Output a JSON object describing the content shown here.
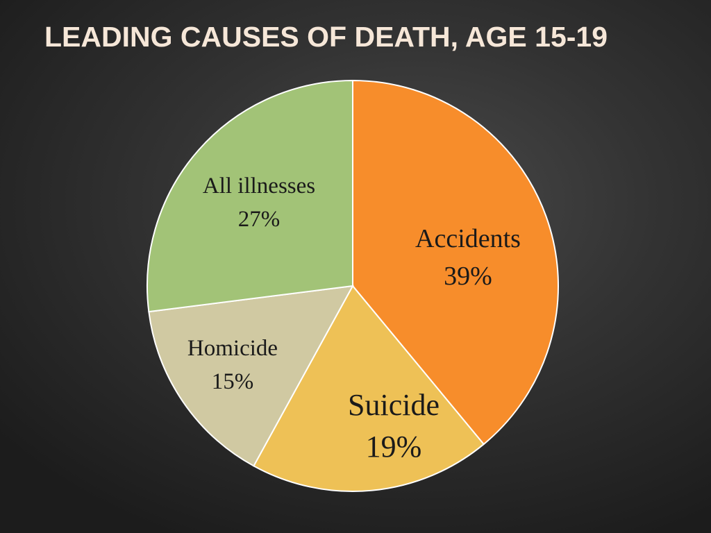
{
  "title": "LEADING CAUSES OF DEATH, AGE 15-19",
  "colors": {
    "title": "#f6e7d8",
    "background": "#333333",
    "slice_border": "#ffffff"
  },
  "chart_data": {
    "type": "pie",
    "title": "LEADING CAUSES OF DEATH, AGE 15-19",
    "slices": [
      {
        "label": "Accidents",
        "value": 39,
        "value_label": "39%",
        "color": "#f78d2b"
      },
      {
        "label": "Suicide",
        "value": 19,
        "value_label": "19%",
        "color": "#eec156"
      },
      {
        "label": "Homicide",
        "value": 15,
        "value_label": "15%",
        "color": "#d0c9a2"
      },
      {
        "label": "All illnesses",
        "value": 27,
        "value_label": "27%",
        "color": "#a2c377"
      }
    ],
    "start": "12 o'clock",
    "direction": "clockwise",
    "legend": "none",
    "labels": "inside slices"
  }
}
